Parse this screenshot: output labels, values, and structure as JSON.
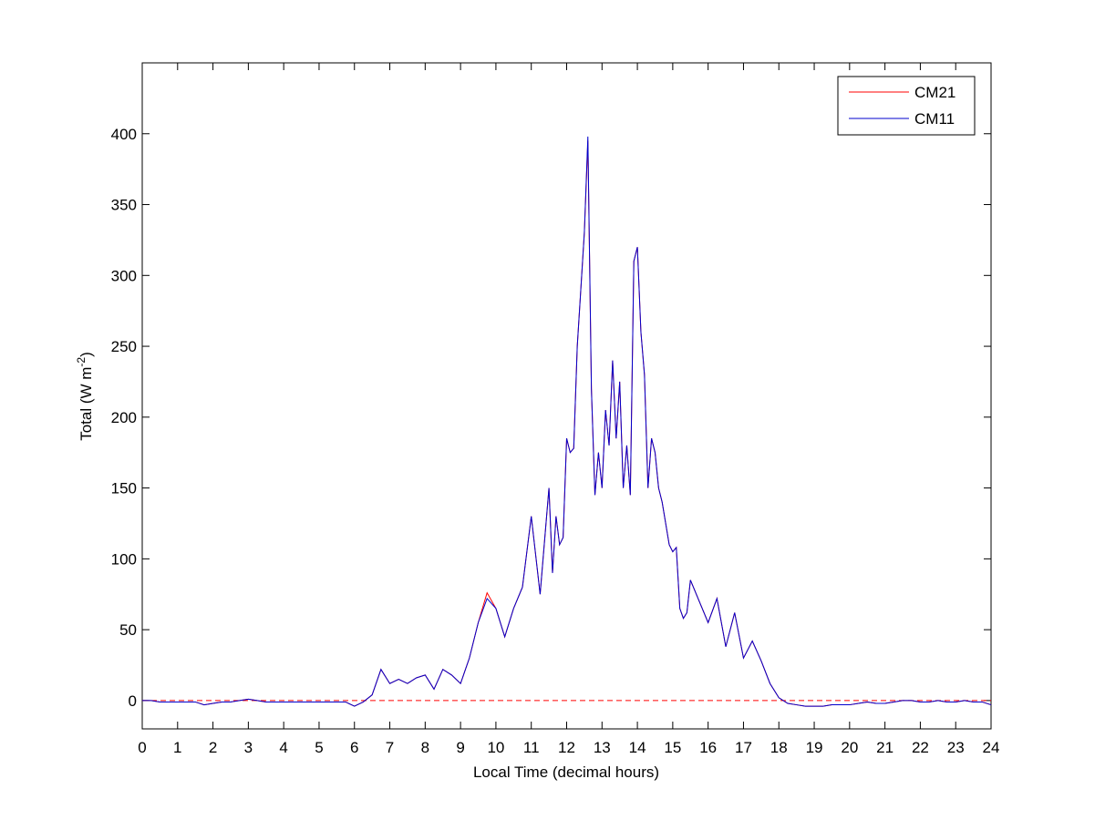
{
  "chart_data": {
    "type": "line",
    "x_label": "Local Time (decimal hours)",
    "y_label": {
      "text": "Total (W m",
      "superscript": "-2",
      "suffix": ")"
    },
    "x": [
      0,
      0.25,
      0.5,
      0.75,
      1,
      1.25,
      1.5,
      1.75,
      2,
      2.25,
      2.5,
      2.75,
      3,
      3.25,
      3.5,
      3.75,
      4,
      4.25,
      4.5,
      4.75,
      5,
      5.25,
      5.5,
      5.75,
      6,
      6.25,
      6.5,
      6.75,
      7,
      7.25,
      7.5,
      7.75,
      8,
      8.25,
      8.5,
      8.75,
      9,
      9.25,
      9.5,
      9.75,
      10,
      10.25,
      10.5,
      10.75,
      11,
      11.25,
      11.5,
      11.6,
      11.7,
      11.8,
      11.9,
      12,
      12.1,
      12.2,
      12.3,
      12.4,
      12.5,
      12.6,
      12.7,
      12.8,
      12.9,
      13,
      13.1,
      13.2,
      13.3,
      13.4,
      13.5,
      13.6,
      13.7,
      13.8,
      13.9,
      14,
      14.1,
      14.2,
      14.3,
      14.4,
      14.5,
      14.6,
      14.7,
      14.8,
      14.9,
      15,
      15.1,
      15.2,
      15.3,
      15.4,
      15.5,
      15.75,
      16,
      16.25,
      16.5,
      16.75,
      17,
      17.25,
      17.5,
      17.75,
      18,
      18.25,
      18.5,
      18.75,
      19,
      19.25,
      19.5,
      19.75,
      20,
      20.25,
      20.5,
      20.75,
      21,
      21.25,
      21.5,
      21.75,
      22,
      22.25,
      22.5,
      22.75,
      23,
      23.25,
      23.5,
      23.75,
      24
    ],
    "series": [
      {
        "name": "CM21",
        "color": "#ff0000",
        "values": [
          0,
          0,
          -1,
          -1,
          -1,
          -1,
          -1,
          -3,
          -2,
          -1,
          -1,
          0,
          1,
          0,
          -1,
          -1,
          -1,
          -1,
          -1,
          -1,
          -1,
          -1,
          -1,
          -1,
          -4,
          -1,
          4,
          22,
          12,
          15,
          12,
          16,
          18,
          8,
          22,
          18,
          12,
          30,
          55,
          76,
          65,
          45,
          65,
          80,
          130,
          75,
          150,
          90,
          130,
          110,
          115,
          185,
          175,
          178,
          250,
          290,
          330,
          395,
          220,
          145,
          175,
          150,
          205,
          180,
          240,
          185,
          225,
          150,
          180,
          145,
          310,
          320,
          260,
          230,
          150,
          185,
          175,
          150,
          140,
          125,
          110,
          105,
          108,
          65,
          58,
          62,
          85,
          70,
          55,
          72,
          38,
          62,
          30,
          42,
          28,
          12,
          2,
          -2,
          -3,
          -4,
          -4,
          -4,
          -3,
          -3,
          -3,
          -2,
          -1,
          -2,
          -2,
          -1,
          0,
          0,
          -1,
          -1,
          0,
          -1,
          -1,
          0,
          -1,
          -1,
          -3
        ]
      },
      {
        "name": "CM11",
        "color": "#0000cc",
        "values": [
          0,
          0,
          -1,
          -1,
          -1,
          -1,
          -1,
          -3,
          -2,
          -1,
          -1,
          0,
          1,
          0,
          -1,
          -1,
          -1,
          -1,
          -1,
          -1,
          -1,
          -1,
          -1,
          -1,
          -4,
          -1,
          4,
          22,
          12,
          15,
          12,
          16,
          18,
          8,
          22,
          18,
          12,
          30,
          55,
          72,
          65,
          45,
          65,
          80,
          130,
          75,
          150,
          90,
          130,
          110,
          115,
          185,
          175,
          178,
          250,
          290,
          330,
          398,
          220,
          145,
          175,
          150,
          205,
          180,
          240,
          185,
          225,
          150,
          180,
          145,
          310,
          320,
          260,
          230,
          150,
          185,
          175,
          150,
          140,
          125,
          110,
          105,
          108,
          65,
          58,
          62,
          85,
          70,
          55,
          72,
          38,
          62,
          30,
          42,
          28,
          12,
          2,
          -2,
          -3,
          -4,
          -4,
          -4,
          -3,
          -3,
          -3,
          -2,
          -1,
          -2,
          -2,
          -1,
          0,
          0,
          -1,
          -1,
          0,
          -1,
          -1,
          0,
          -1,
          -1,
          -3
        ]
      }
    ],
    "reference_line": {
      "y": 0,
      "color": "#ff0000",
      "style": "dashed"
    },
    "xlim": [
      0,
      24
    ],
    "xticks": [
      0,
      1,
      2,
      3,
      4,
      5,
      6,
      7,
      8,
      9,
      10,
      11,
      12,
      13,
      14,
      15,
      16,
      17,
      18,
      19,
      20,
      21,
      22,
      23,
      24
    ],
    "ylim": [
      -20,
      450
    ],
    "yticks": [
      0,
      50,
      100,
      150,
      200,
      250,
      300,
      350,
      400
    ],
    "grid": false,
    "legend": "upper right"
  }
}
